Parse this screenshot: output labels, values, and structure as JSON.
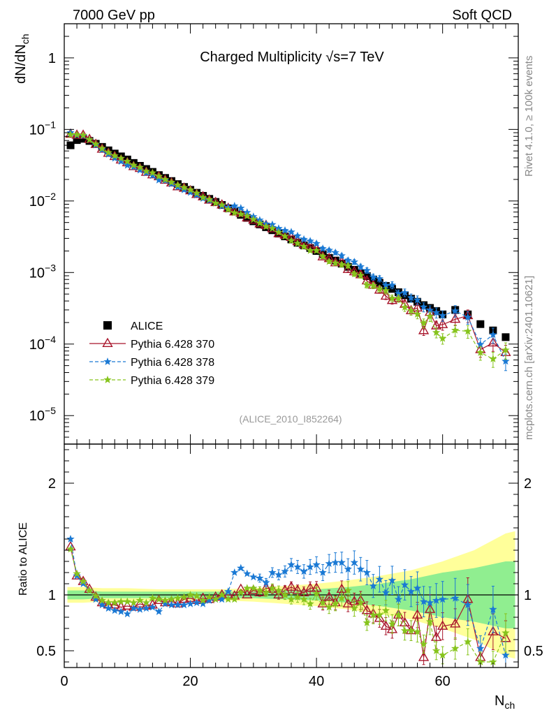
{
  "header": {
    "left": "7000 GeV pp",
    "right": "Soft QCD"
  },
  "side_text": {
    "rivet": "Rivet 4.1.0, ≥ 100k events",
    "mcplots": "mcplots.cern.ch [arXiv:2401.10621]"
  },
  "colors": {
    "alice": "#000000",
    "p370": "#a8152b",
    "p378": "#1a79d4",
    "p379": "#86c41c",
    "band_yellow": "#ffff9a",
    "band_green": "#90ee90"
  },
  "chart_data": {
    "type": "line",
    "title": "Charged Multiplicity √s=7 TeV",
    "analysis_id": "(ALICE_2010_I852264)",
    "xlabel": "N_ch",
    "ylabel": "dN/dN_ch",
    "ratio_ylabel": "Ratio to ALICE",
    "xlim": [
      0,
      72
    ],
    "ylim_main": [
      4e-06,
      3
    ],
    "ylim_ratio": [
      0.35,
      2.35
    ],
    "yscale_main": "log",
    "x_ticks": [
      0,
      20,
      40,
      60
    ],
    "x_tick_labels": [
      "0",
      "20",
      "40",
      "60"
    ],
    "main_y_ticks": [
      1e-05,
      0.0001,
      0.001,
      0.01,
      0.1,
      1
    ],
    "main_y_tick_labels": [
      {
        "base": "10",
        "exp": "−5"
      },
      {
        "base": "10",
        "exp": "−4"
      },
      {
        "base": "10",
        "exp": "−3"
      },
      {
        "base": "10",
        "exp": "−2"
      },
      {
        "base": "10",
        "exp": "−1"
      },
      {
        "base": "1",
        "exp": ""
      }
    ],
    "ratio_y_ticks": [
      0.5,
      1,
      2
    ],
    "ratio_y_tick_labels": [
      "0.5",
      "1",
      "2"
    ],
    "legend": {
      "position": "lower-left",
      "entries": [
        {
          "key": "alice",
          "label": "ALICE"
        },
        {
          "key": "p370",
          "label": "Pythia 6.428 370"
        },
        {
          "key": "p378",
          "label": "Pythia 6.428 378"
        },
        {
          "key": "p379",
          "label": "Pythia 6.428 379"
        }
      ]
    },
    "alice": {
      "x": [
        1,
        2,
        3,
        4,
        5,
        6,
        7,
        8,
        9,
        10,
        11,
        12,
        13,
        14,
        15,
        16,
        17,
        18,
        19,
        20,
        21,
        22,
        23,
        24,
        25,
        26,
        27,
        28,
        29,
        30,
        31,
        32,
        33,
        34,
        35,
        36,
        37,
        38,
        39,
        40,
        41,
        42,
        43,
        44,
        45,
        46,
        47,
        48,
        49,
        50,
        51,
        52,
        53,
        54,
        55,
        56,
        57,
        58,
        59,
        60,
        62,
        64,
        66,
        68,
        70
      ],
      "y": [
        0.06,
        0.071,
        0.074,
        0.069,
        0.063,
        0.057,
        0.051,
        0.046,
        0.042,
        0.038,
        0.034,
        0.031,
        0.028,
        0.0255,
        0.023,
        0.021,
        0.019,
        0.0172,
        0.0157,
        0.0143,
        0.013,
        0.0118,
        0.0107,
        0.0097,
        0.0088,
        0.0079,
        0.0071,
        0.0064,
        0.0058,
        0.0052,
        0.0047,
        0.0043,
        0.0039,
        0.0035,
        0.0032,
        0.0029,
        0.0026,
        0.0024,
        0.0022,
        0.002,
        0.0018,
        0.0016,
        0.00147,
        0.00133,
        0.0012,
        0.00109,
        0.00098,
        0.00089,
        0.0008,
        0.00072,
        0.00065,
        0.00059,
        0.00053,
        0.00048,
        0.00043,
        0.00039,
        0.00035,
        0.00032,
        0.00029,
        0.00026,
        0.0003,
        0.00026,
        0.00019,
        0.000155,
        0.000125
      ]
    },
    "series": [
      {
        "key": "p370",
        "name": "Pythia 6.428 370",
        "marker": "triangle-open",
        "line": "solid",
        "x": [
          1,
          2,
          3,
          4,
          5,
          6,
          7,
          8,
          9,
          10,
          11,
          12,
          13,
          14,
          15,
          16,
          17,
          18,
          19,
          20,
          21,
          22,
          23,
          24,
          25,
          26,
          27,
          28,
          29,
          30,
          31,
          32,
          33,
          34,
          35,
          36,
          37,
          38,
          39,
          40,
          41,
          42,
          43,
          44,
          45,
          46,
          47,
          48,
          49,
          50,
          51,
          52,
          53,
          54,
          55,
          56,
          57,
          58,
          59,
          60,
          62,
          64,
          66,
          68,
          70
        ],
        "ratio": [
          1.43,
          1.17,
          1.12,
          1.05,
          0.98,
          0.93,
          0.91,
          0.91,
          0.89,
          0.9,
          0.89,
          0.92,
          0.9,
          0.91,
          0.95,
          0.93,
          0.94,
          0.92,
          0.96,
          0.97,
          0.95,
          0.97,
          0.96,
          0.98,
          1.0,
          1.0,
          0.99,
          1.05,
          1.0,
          1.04,
          1.02,
          1.06,
          1.05,
          1.0,
          1.04,
          1.07,
          1.04,
          1.02,
          1.06,
          1.06,
          0.92,
          0.98,
          0.93,
          1.05,
          0.92,
          0.94,
          0.95,
          0.86,
          0.83,
          0.79,
          0.72,
          0.69,
          0.82,
          0.75,
          0.68,
          0.82,
          0.44,
          0.87,
          0.62,
          0.72,
          0.74,
          0.96,
          0.44,
          0.67,
          0.61
        ]
      },
      {
        "key": "p378",
        "name": "Pythia 6.428 378",
        "marker": "star",
        "line": "dashed",
        "x": [
          1,
          2,
          3,
          4,
          5,
          6,
          7,
          8,
          9,
          10,
          11,
          12,
          13,
          14,
          15,
          16,
          17,
          18,
          19,
          20,
          21,
          22,
          23,
          24,
          25,
          26,
          27,
          28,
          29,
          30,
          31,
          32,
          33,
          34,
          35,
          36,
          37,
          38,
          39,
          40,
          41,
          42,
          43,
          44,
          45,
          46,
          47,
          48,
          49,
          50,
          51,
          52,
          53,
          54,
          55,
          56,
          57,
          58,
          59,
          60,
          62,
          64,
          66,
          68,
          70
        ],
        "ratio": [
          1.5,
          1.17,
          1.1,
          1.04,
          0.96,
          0.91,
          0.88,
          0.86,
          0.85,
          0.83,
          0.88,
          0.87,
          0.88,
          0.89,
          0.85,
          0.92,
          0.91,
          0.91,
          0.91,
          0.92,
          0.93,
          0.92,
          0.95,
          0.96,
          0.96,
          1.03,
          1.2,
          1.24,
          1.19,
          1.16,
          1.15,
          1.11,
          1.2,
          1.18,
          1.21,
          1.27,
          1.25,
          1.21,
          1.25,
          1.27,
          1.2,
          1.28,
          1.29,
          1.29,
          1.23,
          1.29,
          1.23,
          1.2,
          1.08,
          1.14,
          1.02,
          1.13,
          0.96,
          1.09,
          1.03,
          1.06,
          0.94,
          0.93,
          0.95,
          0.96,
          0.97,
          0.91,
          0.52,
          0.87,
          0.46
        ]
      },
      {
        "key": "p379",
        "name": "Pythia 6.428 379",
        "marker": "star",
        "line": "dashed",
        "x": [
          1,
          2,
          3,
          4,
          5,
          6,
          7,
          8,
          9,
          10,
          11,
          12,
          13,
          14,
          15,
          16,
          17,
          18,
          19,
          20,
          21,
          22,
          23,
          24,
          25,
          26,
          27,
          28,
          29,
          30,
          31,
          32,
          33,
          34,
          35,
          36,
          37,
          38,
          39,
          40,
          41,
          42,
          43,
          44,
          45,
          46,
          47,
          48,
          49,
          50,
          51,
          52,
          53,
          54,
          55,
          56,
          57,
          58,
          59,
          60,
          62,
          64,
          66,
          68,
          70
        ],
        "ratio": [
          1.41,
          1.19,
          1.12,
          1.04,
          0.99,
          0.95,
          0.93,
          0.93,
          0.94,
          0.94,
          0.93,
          0.95,
          0.93,
          0.97,
          0.96,
          0.95,
          0.96,
          0.97,
          0.98,
          1.0,
          0.99,
          0.95,
          0.98,
          0.96,
          1.0,
          0.96,
          0.96,
          1.02,
          1.06,
          1.06,
          1.04,
          1.02,
          1.06,
          1.04,
          1.0,
          0.96,
          0.98,
          0.96,
          0.92,
          1.01,
          0.93,
          0.89,
          0.92,
          0.97,
          1.04,
          0.88,
          0.93,
          0.75,
          0.82,
          0.82,
          0.86,
          0.74,
          0.82,
          0.68,
          0.68,
          0.67,
          0.56,
          0.76,
          0.5,
          0.46,
          0.52,
          0.58,
          0.4,
          0.4,
          0.66
        ]
      }
    ],
    "uncertainty_bands": {
      "x": [
        0.5,
        3,
        6,
        10,
        15,
        20,
        25,
        30,
        35,
        40,
        45,
        50,
        55,
        60,
        65,
        70,
        71.5
      ],
      "yellow_half_width": [
        0.07,
        0.07,
        0.06,
        0.06,
        0.05,
        0.05,
        0.05,
        0.06,
        0.08,
        0.1,
        0.13,
        0.17,
        0.22,
        0.3,
        0.4,
        0.55,
        0.57
      ],
      "green_half_width": [
        0.04,
        0.04,
        0.03,
        0.03,
        0.03,
        0.03,
        0.03,
        0.03,
        0.04,
        0.05,
        0.07,
        0.1,
        0.14,
        0.2,
        0.24,
        0.3,
        0.3
      ]
    }
  }
}
